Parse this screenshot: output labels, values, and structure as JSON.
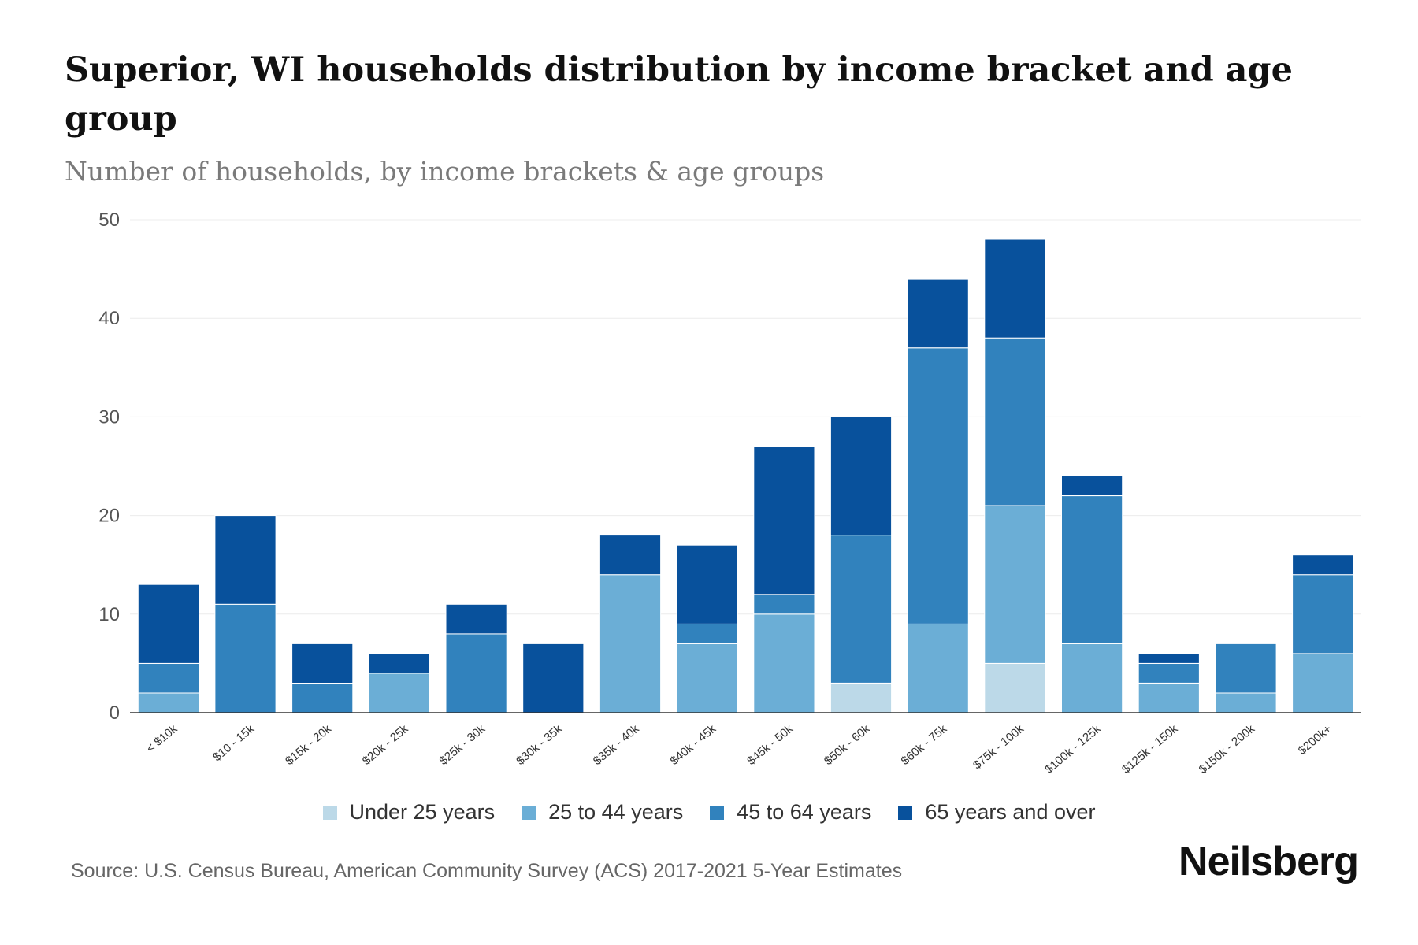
{
  "header": {
    "title": "Superior, WI households distribution by income bracket and age group",
    "subtitle": "Number of households, by income brackets & age groups"
  },
  "footer": {
    "source": "Source: U.S. Census Bureau, American Community Survey (ACS) 2017-2021 5-Year Estimates",
    "brand": "Neilsberg"
  },
  "chart_data": {
    "type": "bar",
    "stacked": true,
    "title": "Superior, WI households distribution by income bracket and age group",
    "subtitle": "Number of households, by income brackets & age groups",
    "xlabel": "",
    "ylabel": "",
    "ylim": [
      0,
      50
    ],
    "yticks": [
      0,
      10,
      20,
      30,
      40,
      50
    ],
    "grid": true,
    "legend_position": "bottom-center",
    "categories": [
      "< $10k",
      "$10 - 15k",
      "$15k - 20k",
      "$20k - 25k",
      "$25k - 30k",
      "$30k - 35k",
      "$35k - 40k",
      "$40k - 45k",
      "$45k - 50k",
      "$50k - 60k",
      "$60k - 75k",
      "$75k - 100k",
      "$100k - 125k",
      "$125k - 150k",
      "$150k - 200k",
      "$200k+"
    ],
    "series": [
      {
        "name": "Under 25 years",
        "color": "#bcd9e8",
        "values": [
          0,
          0,
          0,
          0,
          0,
          0,
          0,
          0,
          0,
          3,
          0,
          5,
          0,
          0,
          0,
          0
        ]
      },
      {
        "name": "25 to 44 years",
        "color": "#6baed6",
        "values": [
          2,
          0,
          0,
          4,
          0,
          0,
          14,
          7,
          10,
          0,
          9,
          16,
          7,
          3,
          2,
          6
        ]
      },
      {
        "name": "45 to 64 years",
        "color": "#3182bd",
        "values": [
          3,
          11,
          3,
          0,
          8,
          0,
          0,
          2,
          2,
          15,
          28,
          17,
          15,
          2,
          5,
          8
        ]
      },
      {
        "name": "65 years and over",
        "color": "#08519c",
        "values": [
          8,
          9,
          4,
          2,
          3,
          7,
          4,
          8,
          15,
          12,
          7,
          10,
          2,
          1,
          0,
          2
        ]
      }
    ]
  }
}
